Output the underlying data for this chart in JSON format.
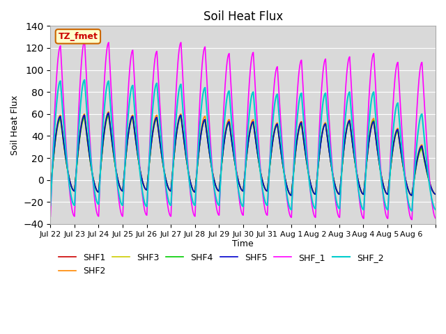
{
  "title": "Soil Heat Flux",
  "ylabel": "Soil Heat Flux",
  "xlabel": "Time",
  "ylim": [
    -40,
    140
  ],
  "yticks": [
    -40,
    -20,
    0,
    20,
    40,
    60,
    80,
    100,
    120,
    140
  ],
  "background_color": "#d9d9d9",
  "figure_bg": "#ffffff",
  "annotation_text": "TZ_fmet",
  "annotation_bg": "#ffffcc",
  "annotation_edge": "#cc6600",
  "annotation_text_color": "#cc0000",
  "series": [
    {
      "name": "SHF1",
      "color": "#cc0000",
      "lw": 1.2
    },
    {
      "name": "SHF2",
      "color": "#ff8800",
      "lw": 1.2
    },
    {
      "name": "SHF3",
      "color": "#cccc00",
      "lw": 1.2
    },
    {
      "name": "SHF4",
      "color": "#00cc00",
      "lw": 1.2
    },
    {
      "name": "SHF5",
      "color": "#0000cc",
      "lw": 1.2
    },
    {
      "name": "SHF_1",
      "color": "#ff00ff",
      "lw": 1.2
    },
    {
      "name": "SHF_2",
      "color": "#00cccc",
      "lw": 1.5
    }
  ],
  "n_days": 16,
  "samples_per_day": 48,
  "peaks_shf1": [
    57,
    58,
    60,
    57,
    56,
    58,
    55,
    54,
    53,
    51,
    53,
    52,
    54,
    53,
    45,
    30
  ],
  "peaks_shf2": [
    59,
    60,
    62,
    59,
    59,
    60,
    58,
    55,
    55,
    52,
    52,
    52,
    55,
    56,
    47,
    32
  ],
  "peaks_shf3": [
    55,
    56,
    58,
    56,
    55,
    57,
    54,
    53,
    52,
    50,
    50,
    51,
    53,
    52,
    44,
    28
  ],
  "peaks_shf4": [
    56,
    57,
    59,
    57,
    56,
    58,
    54,
    52,
    52,
    50,
    51,
    51,
    53,
    54,
    45,
    29
  ],
  "peaks_shf5": [
    58,
    59,
    61,
    58,
    57,
    59,
    55,
    53,
    53,
    51,
    52,
    51,
    54,
    53,
    46,
    31
  ],
  "peaks_shf_1": [
    122,
    126,
    125,
    118,
    117,
    125,
    121,
    115,
    116,
    103,
    109,
    110,
    112,
    115,
    107,
    107
  ],
  "peaks_shf_2": [
    90,
    91,
    90,
    86,
    88,
    87,
    84,
    81,
    80,
    78,
    79,
    79,
    80,
    80,
    70,
    60
  ],
  "troughs_shf1": [
    -10,
    -11,
    -10,
    -9,
    -10,
    -11,
    -10,
    -10,
    -10,
    -14,
    -13,
    -13,
    -13,
    -13,
    -14,
    -13
  ],
  "troughs_shf2": [
    -10,
    -11,
    -10,
    -9,
    -10,
    -11,
    -10,
    -10,
    -10,
    -14,
    -13,
    -13,
    -13,
    -13,
    -14,
    -13
  ],
  "troughs_shf3": [
    -10,
    -11,
    -10,
    -9,
    -10,
    -11,
    -10,
    -10,
    -10,
    -14,
    -13,
    -13,
    -13,
    -13,
    -14,
    -13
  ],
  "troughs_shf4": [
    -10,
    -11,
    -10,
    -9,
    -10,
    -11,
    -10,
    -10,
    -10,
    -14,
    -13,
    -13,
    -13,
    -13,
    -14,
    -13
  ],
  "troughs_shf5": [
    -10,
    -11,
    -10,
    -9,
    -10,
    -11,
    -10,
    -10,
    -10,
    -14,
    -13,
    -13,
    -13,
    -13,
    -14,
    -13
  ],
  "troughs_shf_1": [
    -33,
    -33,
    -33,
    -32,
    -33,
    -33,
    -32,
    -32,
    -32,
    -34,
    -34,
    -34,
    -35,
    -35,
    -36,
    -35
  ],
  "troughs_shf_2": [
    -23,
    -22,
    -23,
    -24,
    -23,
    -23,
    -23,
    -24,
    -23,
    -27,
    -26,
    -26,
    -27,
    -27,
    -28,
    -27
  ],
  "xtick_positions": [
    0,
    1,
    2,
    3,
    4,
    5,
    6,
    7,
    8,
    9,
    10,
    11,
    12,
    13,
    14,
    15,
    16
  ],
  "xtick_labels": [
    "Jul 22",
    "Jul 23",
    "Jul 24",
    "Jul 25",
    "Jul 26",
    "Jul 27",
    "Jul 28",
    "Jul 29",
    "Jul 30",
    "Jul 31",
    "Aug 1",
    "Aug 2",
    "Aug 3",
    "Aug 4",
    "Aug 5",
    "Aug 6",
    ""
  ]
}
